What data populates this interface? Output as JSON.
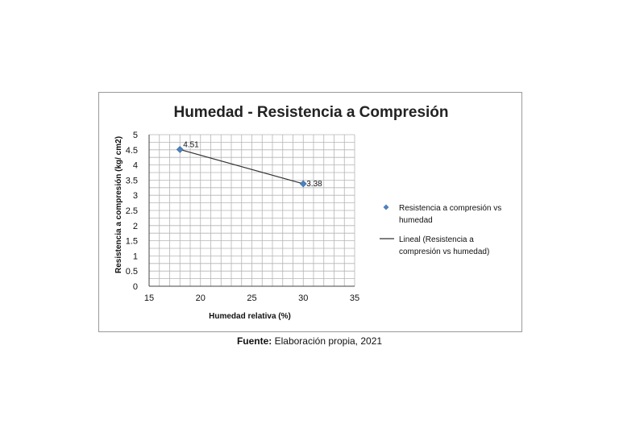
{
  "chart_data": {
    "type": "scatter",
    "title": "Humedad - Resistencia a Compresión",
    "xlabel": "Humedad relativa (%)",
    "ylabel": "Resistencia a compresión (kg/ cm2)",
    "xlim": [
      15,
      35
    ],
    "ylim": [
      0,
      5
    ],
    "x_ticks": [
      "15",
      "20",
      "25",
      "30",
      "35"
    ],
    "y_ticks": [
      "0",
      "0.5",
      "1",
      "1.5",
      "2",
      "2.5",
      "3",
      "3.5",
      "4",
      "4.5",
      "5"
    ],
    "grid": true,
    "legend_position": "right",
    "series": [
      {
        "name": "Resistencia a compresión vs humedad",
        "marker": "diamond",
        "color": "#4F81BD",
        "x": [
          18,
          30
        ],
        "y": [
          4.51,
          3.38
        ],
        "labels": [
          "4.51",
          "3.38"
        ]
      }
    ],
    "trendline": {
      "name": "Lineal (Resistencia a compresión vs humedad)",
      "type": "linear",
      "color": "#333333"
    },
    "legend": {
      "series_label_lines": [
        "Resistencia a compresión vs",
        "humedad"
      ],
      "trend_label_lines": [
        "Lineal (Resistencia a",
        "compresión vs humedad)"
      ]
    }
  },
  "caption": {
    "label": "Fuente:",
    "text": " Elaboración propia, 2021"
  }
}
